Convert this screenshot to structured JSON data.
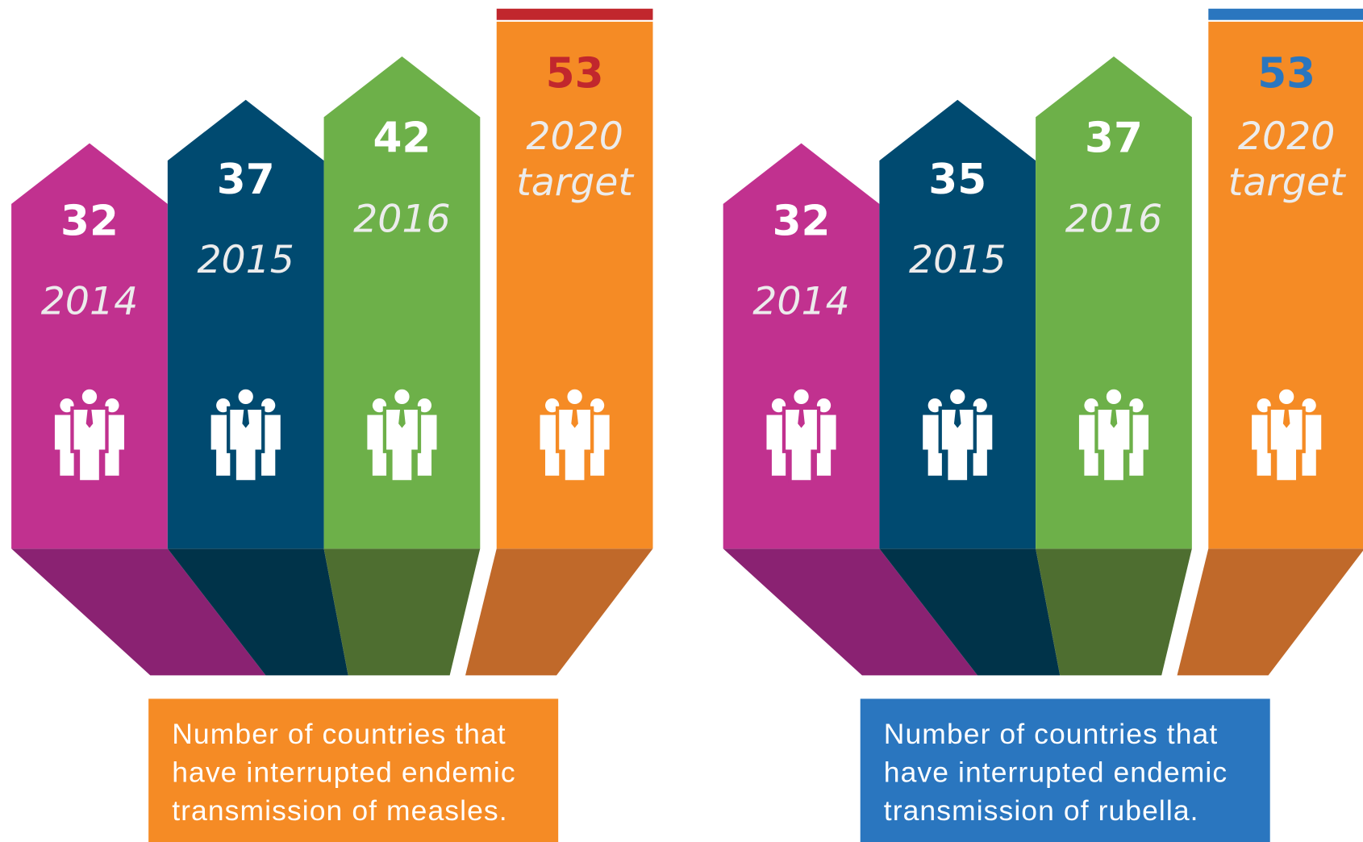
{
  "panels": [
    {
      "accent": "#c1272d",
      "caption_color": "#f58b25",
      "items": [
        {
          "value": 32,
          "label": [
            "2014"
          ],
          "color": "#c1318f",
          "shade": "#8a2272"
        },
        {
          "value": 37,
          "label": [
            "2015"
          ],
          "color": "#004a70",
          "shade": "#003349"
        },
        {
          "value": 42,
          "label": [
            "2016"
          ],
          "color": "#6db049",
          "shade": "#4e6e30"
        },
        {
          "value": 53,
          "label": [
            "2020",
            "target"
          ],
          "color": "#f58b25",
          "shade": "#c0692a"
        }
      ],
      "caption": [
        "Number of countries that",
        "have interrupted endemic",
        "transmission of measles."
      ]
    },
    {
      "accent": "#2a76bf",
      "caption_color": "#2a76bf",
      "items": [
        {
          "value": 32,
          "label": [
            "2014"
          ],
          "color": "#c1318f",
          "shade": "#8a2272"
        },
        {
          "value": 35,
          "label": [
            "2015"
          ],
          "color": "#004a70",
          "shade": "#003349"
        },
        {
          "value": 37,
          "label": [
            "2016"
          ],
          "color": "#6db049",
          "shade": "#4e6e30"
        },
        {
          "value": 53,
          "label": [
            "2020",
            "target"
          ],
          "color": "#f58b25",
          "shade": "#c0692a"
        }
      ],
      "caption": [
        "Number of countries that",
        "have interrupted endemic",
        "transmission of rubella."
      ]
    }
  ]
}
